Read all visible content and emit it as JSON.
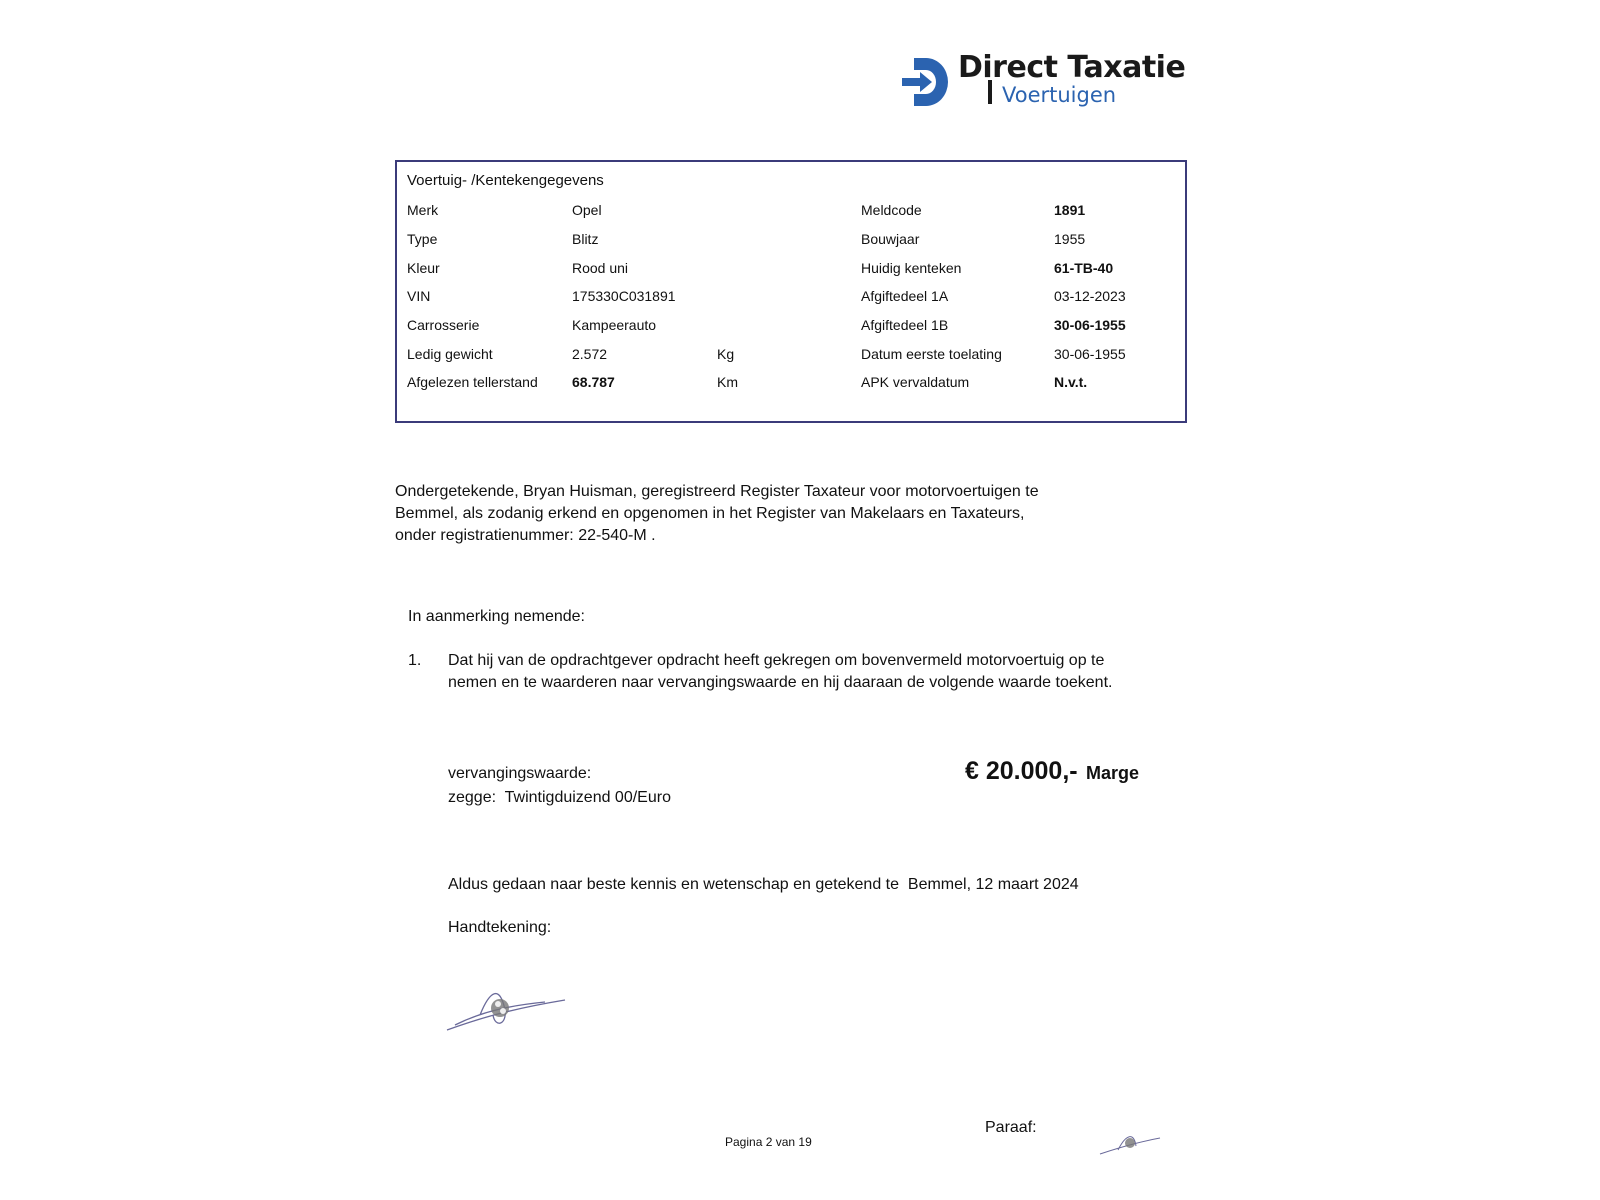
{
  "logo": {
    "title": "Direct Taxatie",
    "subtitle": "Voertuigen",
    "brand_color": "#2b63b0"
  },
  "vehicle": {
    "title": "Voertuig- /Kentekengegevens",
    "left": [
      {
        "label": "Merk",
        "value": "Opel",
        "unit": "",
        "bold": false
      },
      {
        "label": "Type",
        "value": "Blitz",
        "unit": "",
        "bold": false
      },
      {
        "label": "Kleur",
        "value": "Rood uni",
        "unit": "",
        "bold": false
      },
      {
        "label": "VIN",
        "value": "175330C031891",
        "unit": "",
        "bold": false
      },
      {
        "label": "Carrosserie",
        "value": "Kampeerauto",
        "unit": "",
        "bold": false
      },
      {
        "label": "Ledig gewicht",
        "value": "2.572",
        "unit": "Kg",
        "bold": false
      },
      {
        "label": "Afgelezen tellerstand",
        "value": "68.787",
        "unit": "Km",
        "bold": true
      }
    ],
    "right": [
      {
        "label": "Meldcode",
        "value": "1891",
        "bold": true
      },
      {
        "label": "Bouwjaar",
        "value": "1955",
        "bold": false
      },
      {
        "label": "Huidig kenteken",
        "value": "61-TB-40",
        "bold": true
      },
      {
        "label": "Afgiftedeel 1A",
        "value": "03-12-2023",
        "bold": false
      },
      {
        "label": "Afgiftedeel 1B",
        "value": "30-06-1955",
        "bold": true
      },
      {
        "label": "Datum eerste toelating",
        "value": "30-06-1955",
        "bold": false
      },
      {
        "label": "APK vervaldatum",
        "value": "N.v.t.",
        "bold": true
      }
    ]
  },
  "intro": {
    "line1": "Ondergetekende, Bryan Huisman, geregistreerd Register Taxateur voor motorvoertuigen te",
    "line2": "Bemmel, als zodanig erkend en opgenomen in het Register van Makelaars en Taxateurs,",
    "line3": "onder registratienummer: 22-540-M ."
  },
  "consideration": {
    "heading": "In aanmerking nemende:",
    "number": "1.",
    "line1": "Dat hij van de opdrachtgever opdracht heeft gekregen om bovenvermeld motorvoertuig op te",
    "line2": "nemen en te waarderen naar vervangingswaarde en hij daaraan de volgende waarde toekent."
  },
  "valuation": {
    "label": "vervangingswaarde:",
    "amount": "€ 20.000,-",
    "type": "Marge",
    "words": "zegge:  Twintigduizend 00/Euro"
  },
  "closing": {
    "statement": "Aldus gedaan naar beste kennis en wetenschap en getekend te  Bemmel, 12 maart 2024",
    "signature_label": "Handtekening:"
  },
  "footer": {
    "page": "Pagina 2 van 19",
    "initials_label": "Paraaf:"
  }
}
